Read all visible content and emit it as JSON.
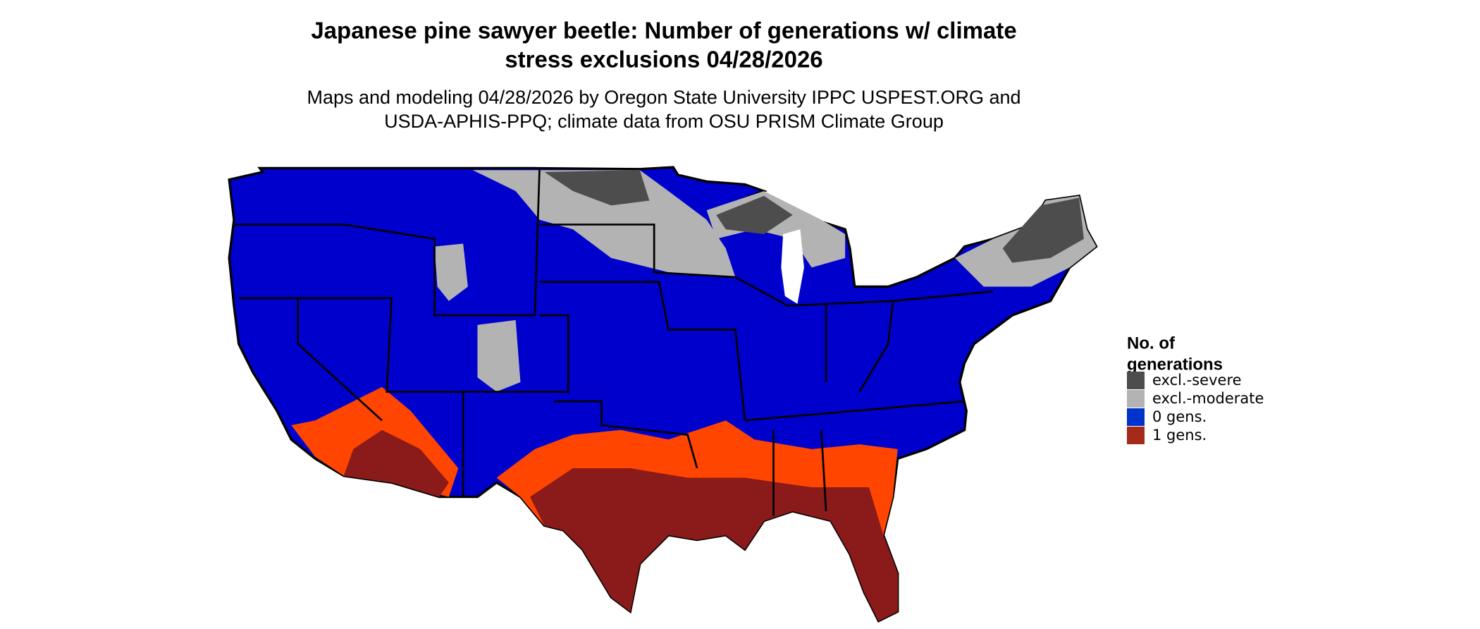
{
  "header": {
    "title_line1": "Japanese pine sawyer beetle: Number of generations w/ climate",
    "title_line2": "stress exclusions 04/28/2026",
    "subtitle_line1": "Maps and modeling 04/28/2026 by Oregon State University IPPC USPEST.ORG and",
    "subtitle_line2": "USDA-APHIS-PPQ; climate data from OSU PRISM Climate Group"
  },
  "legend": {
    "title_line1": "No. of",
    "title_line2": "generations",
    "items": [
      {
        "label": "excl.-severe",
        "color": "#4d4d4d"
      },
      {
        "label": "excl.-moderate",
        "color": "#b3b3b3"
      },
      {
        "label": "0 gens.",
        "color": "#0033cc"
      },
      {
        "label": "1 gens.",
        "color": "#a52a1a"
      }
    ]
  }
}
